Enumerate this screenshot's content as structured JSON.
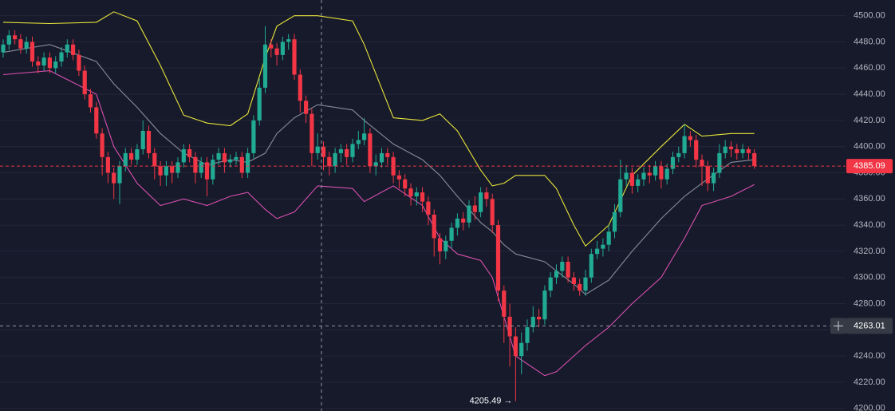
{
  "chart_data": {
    "type": "candlestick",
    "up_color": "#22ab94",
    "down_color": "#f23645",
    "open": [
      4472,
      4478,
      4485,
      4482,
      4475,
      4480,
      4465,
      4462,
      4468,
      4460,
      4465,
      4472,
      4478,
      4470,
      4458,
      4440,
      4430,
      4410,
      4392,
      4380,
      4372,
      4385,
      4395,
      4390,
      4398,
      4412,
      4395,
      4385,
      4378,
      4385,
      4380,
      4388,
      4398,
      4392,
      4380,
      4388,
      4375,
      4390,
      4395,
      4388,
      4390,
      4392,
      4380,
      4395,
      4420,
      4445,
      4478,
      4475,
      4470,
      4480,
      4482,
      4455,
      4435,
      4425,
      4395,
      4400,
      4392,
      4385,
      4395,
      4398,
      4392,
      4402,
      4405,
      4410,
      4385,
      4388,
      4395,
      4392,
      4378,
      4375,
      4368,
      4362,
      4365,
      4358,
      4348,
      4330,
      4320,
      4328,
      4338,
      4345,
      4342,
      4355,
      4350,
      4365,
      4360,
      4340,
      4290,
      4270,
      4255,
      4240,
      4250,
      4262,
      4270,
      4268,
      4290,
      4300,
      4305,
      4312,
      4300,
      4295,
      4290,
      4300,
      4318,
      4322,
      4325,
      4335,
      4350,
      4375,
      4380,
      4370,
      4375,
      4380,
      4378,
      4385,
      4375,
      4383,
      4392,
      4395,
      4408,
      4405,
      4390,
      4385,
      4372,
      4380,
      4395,
      4400,
      4398,
      4395,
      4398,
      4395
    ],
    "high": [
      4482,
      4489,
      4489,
      4486,
      4484,
      4484,
      4469,
      4472,
      4472,
      4469,
      4476,
      4482,
      4482,
      4474,
      4462,
      4444,
      4434,
      4414,
      4396,
      4384,
      4389,
      4399,
      4399,
      4402,
      4420,
      4416,
      4399,
      4389,
      4389,
      4389,
      4392,
      4402,
      4402,
      4396,
      4392,
      4392,
      4394,
      4399,
      4399,
      4394,
      4396,
      4396,
      4399,
      4424,
      4452,
      4492,
      4482,
      4479,
      4484,
      4486,
      4486,
      4459,
      4439,
      4429,
      4410,
      4404,
      4396,
      4399,
      4402,
      4402,
      4406,
      4412,
      4422,
      4414,
      4394,
      4399,
      4399,
      4396,
      4382,
      4379,
      4372,
      4369,
      4369,
      4362,
      4352,
      4334,
      4332,
      4342,
      4349,
      4350,
      4359,
      4362,
      4369,
      4369,
      4364,
      4344,
      4294,
      4280,
      4262,
      4258,
      4268,
      4278,
      4276,
      4294,
      4304,
      4310,
      4316,
      4316,
      4304,
      4299,
      4306,
      4322,
      4328,
      4330,
      4340,
      4356,
      4390,
      4386,
      4384,
      4379,
      4384,
      4386,
      4389,
      4389,
      4387,
      4396,
      4400,
      4417,
      4412,
      4409,
      4394,
      4389,
      4384,
      4402,
      4405,
      4404,
      4402,
      4402,
      4400,
      4398
    ],
    "low": [
      4468,
      4474,
      4478,
      4471,
      4471,
      4461,
      4456,
      4458,
      4456,
      4456,
      4461,
      4468,
      4466,
      4454,
      4436,
      4426,
      4406,
      4378,
      4372,
      4360,
      4356,
      4381,
      4386,
      4386,
      4394,
      4391,
      4375,
      4370,
      4370,
      4372,
      4376,
      4384,
      4388,
      4372,
      4376,
      4362,
      4371,
      4386,
      4380,
      4384,
      4386,
      4376,
      4376,
      4391,
      4416,
      4441,
      4468,
      4462,
      4466,
      4474,
      4451,
      4426,
      4418,
      4385,
      4390,
      4382,
      4378,
      4380,
      4388,
      4386,
      4388,
      4398,
      4401,
      4380,
      4378,
      4384,
      4386,
      4372,
      4368,
      4362,
      4355,
      4355,
      4350,
      4340,
      4316,
      4310,
      4314,
      4322,
      4332,
      4336,
      4338,
      4344,
      4346,
      4354,
      4334,
      4282,
      4250,
      4232,
      4205.49,
      4226,
      4244,
      4258,
      4262,
      4264,
      4285,
      4295,
      4300,
      4296,
      4290,
      4286,
      4286,
      4296,
      4314,
      4316,
      4320,
      4330,
      4346,
      4370,
      4364,
      4365,
      4370,
      4372,
      4374,
      4368,
      4371,
      4379,
      4388,
      4391,
      4400,
      4384,
      4370,
      4366,
      4366,
      4376,
      4391,
      4392,
      4390,
      4391,
      4390,
      4383
    ],
    "close": [
      4478,
      4485,
      4482,
      4475,
      4480,
      4465,
      4462,
      4468,
      4460,
      4465,
      4472,
      4478,
      4470,
      4458,
      4440,
      4430,
      4410,
      4392,
      4380,
      4372,
      4385,
      4395,
      4390,
      4398,
      4412,
      4395,
      4385,
      4378,
      4385,
      4380,
      4388,
      4398,
      4392,
      4380,
      4388,
      4375,
      4390,
      4395,
      4388,
      4390,
      4392,
      4380,
      4395,
      4420,
      4445,
      4478,
      4475,
      4470,
      4480,
      4482,
      4455,
      4435,
      4425,
      4395,
      4400,
      4392,
      4385,
      4395,
      4398,
      4392,
      4402,
      4405,
      4410,
      4385,
      4388,
      4395,
      4392,
      4378,
      4375,
      4368,
      4362,
      4365,
      4358,
      4348,
      4330,
      4320,
      4328,
      4338,
      4345,
      4342,
      4355,
      4350,
      4365,
      4360,
      4340,
      4290,
      4270,
      4255,
      4240,
      4250,
      4262,
      4270,
      4268,
      4290,
      4300,
      4305,
      4312,
      4300,
      4295,
      4290,
      4300,
      4318,
      4322,
      4325,
      4335,
      4350,
      4375,
      4380,
      4370,
      4375,
      4380,
      4378,
      4385,
      4375,
      4383,
      4392,
      4395,
      4408,
      4405,
      4390,
      4385,
      4372,
      4380,
      4395,
      4400,
      4398,
      4395,
      4398,
      4395,
      4385.09
    ],
    "bands": [
      {
        "color": "#e8e43a",
        "x": [
          0,
          8,
          16,
          19,
          23,
          27,
          31,
          35,
          39,
          42,
          45,
          47,
          50,
          54,
          60,
          62,
          67,
          72,
          75,
          78,
          82,
          84,
          86,
          88,
          93,
          95,
          98,
          100,
          104,
          108,
          113,
          117,
          120,
          125,
          129
        ],
        "values": [
          4495,
          4494,
          4495,
          4503,
          4496,
          4462,
          4424,
          4418,
          4416,
          4425,
          4468,
          4492,
          4500,
          4500,
          4496,
          4478,
          4422,
          4420,
          4425,
          4412,
          4382,
          4370,
          4372,
          4378,
          4378,
          4368,
          4340,
          4324,
          4340,
          4378,
          4400,
          4417,
          4408,
          4410,
          4410
        ]
      },
      {
        "color": "#878b99",
        "x": [
          0,
          8,
          16,
          19,
          23,
          27,
          31,
          35,
          39,
          42,
          45,
          47,
          50,
          54,
          60,
          62,
          67,
          72,
          75,
          78,
          82,
          84,
          86,
          88,
          93,
          95,
          98,
          100,
          104,
          108,
          113,
          117,
          120,
          125,
          129
        ],
        "values": [
          4472,
          4478,
          4465,
          4448,
          4430,
          4410,
          4395,
          4386,
          4390,
          4388,
          4395,
          4410,
          4422,
          4432,
          4428,
          4420,
          4402,
          4390,
          4378,
          4362,
          4342,
          4335,
          4325,
          4318,
          4312,
          4305,
          4295,
          4287,
          4298,
          4320,
          4345,
          4362,
          4372,
          4388,
          4390
        ]
      },
      {
        "color": "#d94fae",
        "x": [
          0,
          8,
          16,
          19,
          23,
          27,
          31,
          35,
          39,
          42,
          45,
          47,
          50,
          54,
          60,
          62,
          67,
          72,
          75,
          78,
          82,
          84,
          86,
          88,
          93,
          95,
          98,
          100,
          104,
          108,
          113,
          117,
          120,
          125,
          129
        ],
        "values": [
          4455,
          4458,
          4440,
          4400,
          4372,
          4355,
          4360,
          4355,
          4362,
          4365,
          4352,
          4345,
          4350,
          4370,
          4368,
          4358,
          4370,
          4355,
          4330,
          4318,
          4313,
          4300,
          4270,
          4240,
          4225,
          4228,
          4240,
          4248,
          4262,
          4280,
          4300,
          4330,
          4355,
          4362,
          4371
        ]
      }
    ],
    "ylim": [
      4198,
      4512
    ],
    "yticks": [
      {
        "value": 4200,
        "label": "4200.00"
      },
      {
        "value": 4220,
        "label": "4220.00"
      },
      {
        "value": 4240,
        "label": "4240.00"
      },
      {
        "value": 4260,
        "label": "4260.00"
      },
      {
        "value": 4280,
        "label": "4280.00"
      },
      {
        "value": 4300,
        "label": "4300.00"
      },
      {
        "value": 4320,
        "label": "4320.00"
      },
      {
        "value": 4340,
        "label": "4340.00"
      },
      {
        "value": 4360,
        "label": "4360.00"
      },
      {
        "value": 4380,
        "label": "4380.00"
      },
      {
        "value": 4400,
        "label": "4400.00"
      },
      {
        "value": 4420,
        "label": "4420.00"
      },
      {
        "value": 4440,
        "label": "4440.00"
      },
      {
        "value": 4460,
        "label": "4460.00"
      },
      {
        "value": 4480,
        "label": "4480.00"
      },
      {
        "value": 4500,
        "label": "4500.00"
      }
    ],
    "grid": true,
    "last_price": 4385.09,
    "crosshair_price": 4263.01,
    "low_label": "4205.49 →"
  }
}
